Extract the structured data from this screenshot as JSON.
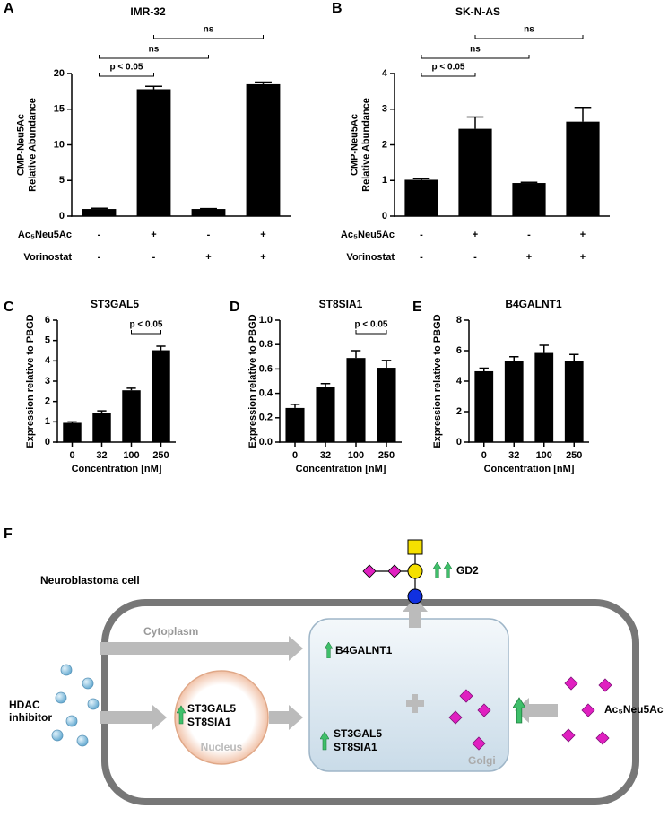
{
  "chart_data": [
    {
      "type": "bar",
      "panel_label": "A",
      "title": "IMR-32",
      "ylabel": [
        "CMP-Neu5Ac",
        "Relative Abundance"
      ],
      "values": [
        1.0,
        17.8,
        1.0,
        18.5
      ],
      "errors": [
        0.1,
        0.4,
        0.05,
        0.3
      ],
      "color": "#000000",
      "ylim": [
        0,
        20
      ],
      "yticks": [
        0,
        5,
        10,
        15,
        20
      ],
      "treatments": [
        {
          "label": "Ac₅Neu5Ac",
          "signs": [
            "-",
            "+",
            "-",
            "+"
          ]
        },
        {
          "label": "Vorinostat",
          "signs": [
            "-",
            "-",
            "+",
            "+"
          ]
        }
      ],
      "significance": [
        {
          "from": 0,
          "to": 1,
          "label": "p < 0.05"
        },
        {
          "from": 0,
          "to": 2,
          "label": "ns"
        },
        {
          "from": 1,
          "to": 3,
          "label": "ns"
        }
      ]
    },
    {
      "type": "bar",
      "panel_label": "B",
      "title": "SK-N-AS",
      "ylabel": [
        "CMP-Neu5Ac",
        "Relative Abundance"
      ],
      "values": [
        1.02,
        2.45,
        0.93,
        2.65
      ],
      "errors": [
        0.03,
        0.33,
        0.02,
        0.4
      ],
      "color": "#000000",
      "ylim": [
        0,
        4
      ],
      "yticks": [
        0,
        1,
        2,
        3,
        4
      ],
      "treatments": [
        {
          "label": "Ac₅Neu5Ac",
          "signs": [
            "-",
            "+",
            "-",
            "+"
          ]
        },
        {
          "label": "Vorinostat",
          "signs": [
            "-",
            "-",
            "+",
            "+"
          ]
        }
      ],
      "significance": [
        {
          "from": 0,
          "to": 1,
          "label": "p < 0.05"
        },
        {
          "from": 0,
          "to": 2,
          "label": "ns"
        },
        {
          "from": 1,
          "to": 3,
          "label": "ns"
        }
      ]
    },
    {
      "type": "bar",
      "panel_label": "C",
      "title": "ST3GAL5",
      "ylabel": [
        "Expression relative to PBGD"
      ],
      "xlabel": "Concentration [nM]",
      "categories": [
        "0",
        "32",
        "100",
        "250"
      ],
      "values": [
        0.95,
        1.42,
        2.55,
        4.52
      ],
      "errors": [
        0.05,
        0.12,
        0.1,
        0.2
      ],
      "color": "#000000",
      "ylim": [
        0,
        6
      ],
      "yticks": [
        0,
        1,
        2,
        3,
        4,
        5,
        6
      ],
      "significance": [
        {
          "from": 2,
          "to": 3,
          "label": "p < 0.05"
        }
      ]
    },
    {
      "type": "bar",
      "panel_label": "D",
      "title": "ST8SIA1",
      "ylabel": [
        "Expression relative to PBGD"
      ],
      "xlabel": "Concentration [nM]",
      "categories": [
        "0",
        "32",
        "100",
        "250"
      ],
      "values": [
        0.28,
        0.455,
        0.69,
        0.61
      ],
      "errors": [
        0.03,
        0.025,
        0.06,
        0.06
      ],
      "color": "#000000",
      "ylim": [
        0,
        1
      ],
      "yticks": [
        {
          "value": 0,
          "label": "0.0"
        },
        0.2,
        0.4,
        0.6,
        0.8,
        {
          "value": 1,
          "label": "1.0"
        }
      ],
      "significance": [
        {
          "from": 2,
          "to": 3,
          "label": "p < 0.05"
        }
      ]
    },
    {
      "type": "bar",
      "panel_label": "E",
      "title": "B4GALNT1",
      "ylabel": [
        "Expression relative to PBGD"
      ],
      "xlabel": "Concentration [nM]",
      "categories": [
        "0",
        "32",
        "100",
        "250"
      ],
      "values": [
        4.65,
        5.3,
        5.85,
        5.35
      ],
      "errors": [
        0.2,
        0.3,
        0.5,
        0.4
      ],
      "color": "#000000",
      "ylim": [
        0,
        8
      ],
      "yticks": [
        0,
        2,
        4,
        6,
        8
      ]
    }
  ],
  "diagram": {
    "panel_label": "F",
    "cell_label": "Neuroblastoma cell",
    "cytoplasm": "Cytoplasm",
    "hdac": [
      "HDAC",
      "inhibitor"
    ],
    "nucleus_genes": [
      "ST3GAL5",
      "ST8SIA1"
    ],
    "nucleus": "Nucleus",
    "golgi_gene": "B4GALNT1",
    "golgi_genes": [
      "ST3GAL5",
      "ST8SIA1"
    ],
    "golgi": "Golgi",
    "substrate": "Ac₅Neu5Ac",
    "product": "GD2"
  }
}
